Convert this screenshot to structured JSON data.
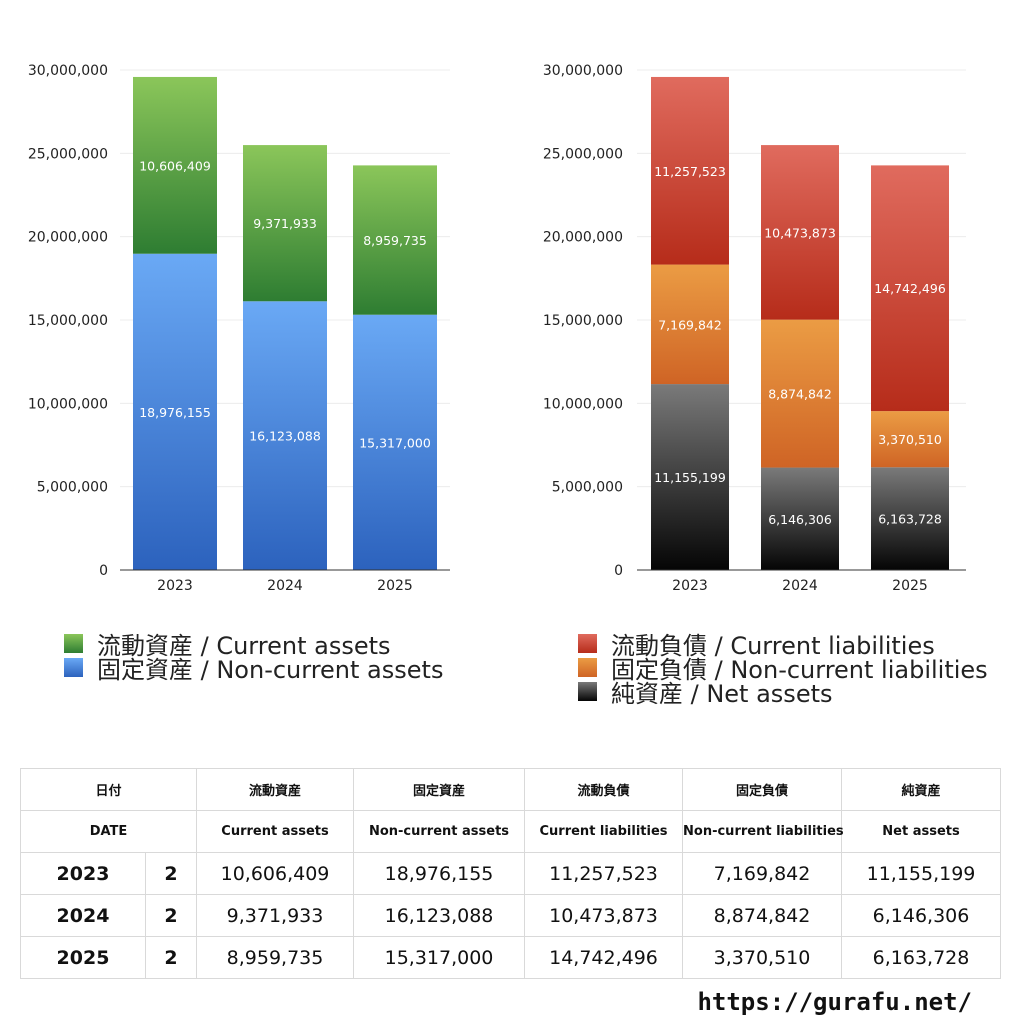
{
  "colors": {
    "current_assets": [
      "#8bc65a",
      "#2e7d32"
    ],
    "noncurrent_assets": [
      "#6aa9f5",
      "#2c62bd"
    ],
    "current_liabilities": [
      "#e06b5e",
      "#b62c1a"
    ],
    "noncurrent_liabilities": [
      "#eb9c44",
      "#cf6425"
    ],
    "net_assets": [
      "#7a7a7a",
      "#050505"
    ]
  },
  "chart_data": [
    {
      "type": "bar",
      "stacked": true,
      "categories": [
        "2023",
        "2024",
        "2025"
      ],
      "ylim": [
        0,
        30000000
      ],
      "yticks": [
        "0",
        "5,000,000",
        "10,000,000",
        "15,000,000",
        "20,000,000",
        "25,000,000",
        "30,000,000"
      ],
      "grid": true,
      "series": [
        {
          "name": "固定資産 / Non-current assets",
          "key": "noncurrent_assets",
          "values": [
            18976155,
            16123088,
            15317000
          ],
          "labels": [
            "18,976,155",
            "16,123,088",
            "15,317,000"
          ]
        },
        {
          "name": "流動資産 / Current assets",
          "key": "current_assets",
          "values": [
            10606409,
            9371933,
            8959735
          ],
          "labels": [
            "10,606,409",
            "9,371,933",
            "8,959,735"
          ]
        }
      ],
      "legend": [
        "流動資産 / Current assets",
        "固定資産 / Non-current assets"
      ],
      "legend_keys": [
        "current_assets",
        "noncurrent_assets"
      ]
    },
    {
      "type": "bar",
      "stacked": true,
      "categories": [
        "2023",
        "2024",
        "2025"
      ],
      "ylim": [
        0,
        30000000
      ],
      "yticks": [
        "0",
        "5,000,000",
        "10,000,000",
        "15,000,000",
        "20,000,000",
        "25,000,000",
        "30,000,000"
      ],
      "grid": true,
      "series": [
        {
          "name": "純資産 / Net assets",
          "key": "net_assets",
          "values": [
            11155199,
            6146306,
            6163728
          ],
          "labels": [
            "11,155,199",
            "6,146,306",
            "6,163,728"
          ]
        },
        {
          "name": "固定負債 / Non-current liabilities",
          "key": "noncurrent_liabilities",
          "values": [
            7169842,
            8874842,
            3370510
          ],
          "labels": [
            "7,169,842",
            "8,874,842",
            "3,370,510"
          ]
        },
        {
          "name": "流動負債 / Current liabilities",
          "key": "current_liabilities",
          "values": [
            11257523,
            10473873,
            14742496
          ],
          "labels": [
            "11,257,523",
            "10,473,873",
            "14,742,496"
          ]
        }
      ],
      "legend": [
        "流動負債 / Current liabilities",
        "固定負債 / Non-current liabilities",
        "純資産 / Net assets"
      ],
      "legend_keys": [
        "current_liabilities",
        "noncurrent_liabilities",
        "net_assets"
      ]
    }
  ],
  "table": {
    "headers_jp": [
      "日付",
      "流動資産",
      "固定資産",
      "流動負債",
      "固定負債",
      "純資産"
    ],
    "headers_en": [
      "DATE",
      "Current assets",
      "Non-current assets",
      "Current liabilities",
      "Non-current liabilities",
      "Net assets"
    ],
    "rows": [
      {
        "year": "2023",
        "count": "2",
        "cells": [
          "10,606,409",
          "18,976,155",
          "11,257,523",
          "7,169,842",
          "11,155,199"
        ]
      },
      {
        "year": "2024",
        "count": "2",
        "cells": [
          "9,371,933",
          "16,123,088",
          "10,473,873",
          "8,874,842",
          "6,146,306"
        ]
      },
      {
        "year": "2025",
        "count": "2",
        "cells": [
          "8,959,735",
          "15,317,000",
          "14,742,496",
          "3,370,510",
          "6,163,728"
        ]
      }
    ]
  },
  "footer": {
    "url": "https://gurafu.net/"
  }
}
